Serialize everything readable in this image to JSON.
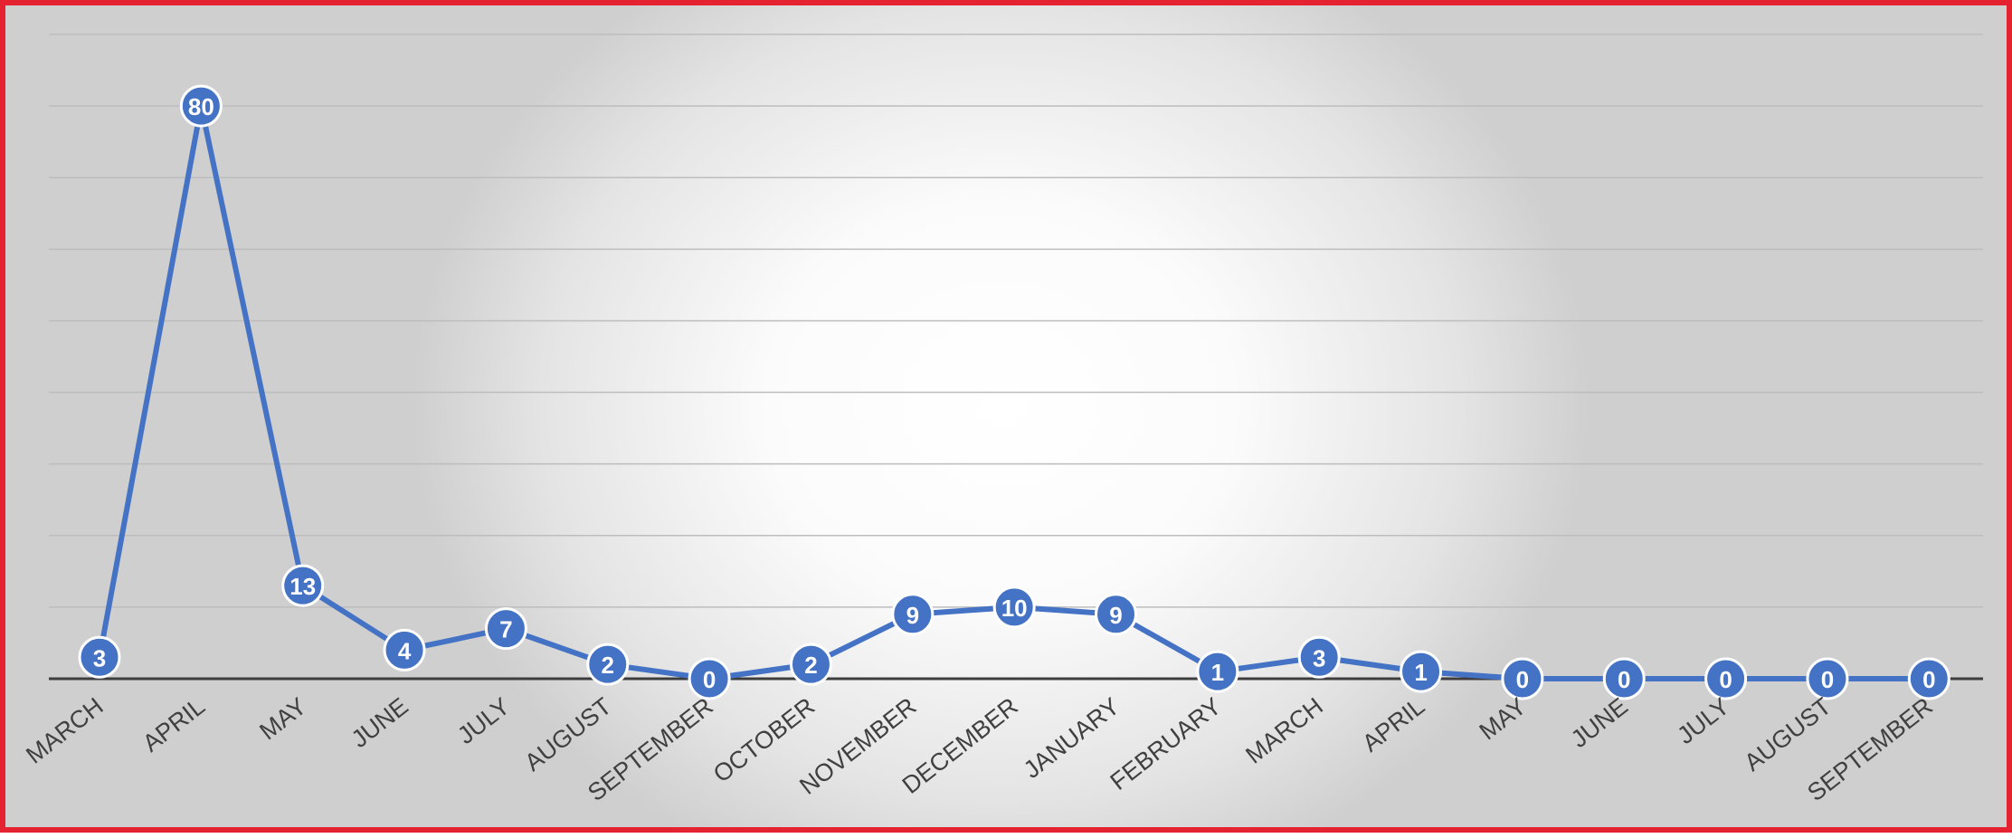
{
  "chart_data": {
    "type": "line",
    "title": "",
    "xlabel": "",
    "ylabel": "",
    "categories": [
      "MARCH",
      "APRIL",
      "MAY",
      "JUNE",
      "JULY",
      "AUGUST",
      "SEPTEMBER",
      "OCTOBER",
      "NOVEMBER",
      "DECEMBER",
      "JANUARY",
      "FEBRUARY",
      "MARCH",
      "APRIL",
      "MAY",
      "JUNE",
      "JULY",
      "AUGUST",
      "SEPTEMBER"
    ],
    "series": [
      {
        "values": [
          3,
          80,
          13,
          4,
          7,
          2,
          0,
          2,
          9,
          10,
          9,
          1,
          3,
          1,
          0,
          0,
          0,
          0,
          0
        ]
      }
    ],
    "ylim": [
      0,
      90
    ],
    "y_gridline_step": 10,
    "grid": true,
    "y_tick_labels_shown": false,
    "data_labels_shown": true,
    "legend": "none",
    "colors": {
      "series": "#4472c4",
      "border": "#e52330",
      "gridline": "#bdbdbd",
      "axis": "#3d3d3d",
      "tick_text": "#404040"
    }
  }
}
